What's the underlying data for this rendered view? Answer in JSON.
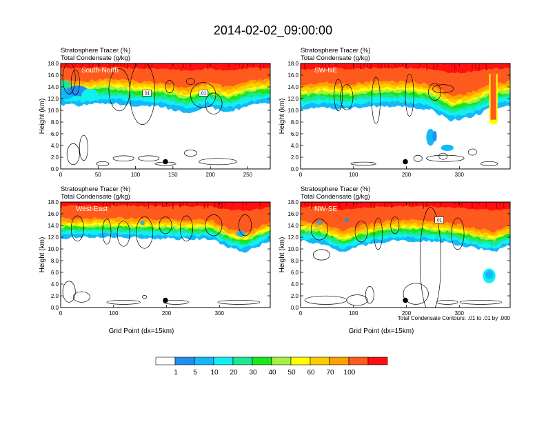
{
  "figure": {
    "title": "2014-02-02_09:00:00",
    "footnote": "Total Condensate Contours: .01 to .01 by .000"
  },
  "colorbar": {
    "colors": [
      "#ffffff",
      "#1f8ef0",
      "#13b8f8",
      "#10f0f0",
      "#1ee690",
      "#18e818",
      "#a6f046",
      "#ffff00",
      "#ffcc00",
      "#ffa000",
      "#ff5a1e",
      "#ff1010"
    ],
    "labels": [
      "1",
      "5",
      "10",
      "20",
      "30",
      "40",
      "50",
      "60",
      "70",
      "100"
    ]
  },
  "chart_data": [
    {
      "type": "heatmap",
      "region": "South-North",
      "var_labels": [
        "Stratosphere Tracer   (%)",
        "Total Condensate   (g/kg)"
      ],
      "xlabel": "",
      "ylabel": "Height (km)",
      "xlim": [
        0,
        280
      ],
      "ylim": [
        0,
        18
      ],
      "xticks": [
        "0",
        "50",
        "100",
        "150",
        "200",
        "250"
      ],
      "xtick_values": [
        0,
        50,
        100,
        150,
        200,
        250
      ],
      "yticks": [
        "0.0",
        "2.0",
        "4.0",
        "6.0",
        "8.0",
        "10.0",
        "12.0",
        "14.0",
        "16.0",
        "18.0"
      ],
      "contour_labels": [
        ".01",
        ".01"
      ],
      "marker": [
        140,
        1.0
      ]
    },
    {
      "type": "heatmap",
      "region": "SW-NE",
      "var_labels": [
        "Stratosphere Tracer   (%)",
        "Total Condensate   (g/kg)"
      ],
      "xlabel": "",
      "ylabel": "Height (km)",
      "xlim": [
        0,
        396
      ],
      "ylim": [
        0,
        18
      ],
      "xticks": [
        "0",
        "100",
        "200",
        "300"
      ],
      "xtick_values": [
        0,
        100,
        200,
        300
      ],
      "yticks": [
        "0.0",
        "2.0",
        "4.0",
        "6.0",
        "8.0",
        "10.0",
        "12.0",
        "14.0",
        "16.0",
        "18.0"
      ],
      "contour_labels": [],
      "marker": [
        198,
        1.0
      ]
    },
    {
      "type": "heatmap",
      "region": "West-East",
      "var_labels": [
        "Stratosphere Tracer   (%)",
        "Total Condensate   (g/kg)"
      ],
      "xlabel": "Grid Point (dx=15km)",
      "ylabel": "Height (km)",
      "xlim": [
        0,
        396
      ],
      "ylim": [
        0,
        18
      ],
      "xticks": [
        "0",
        "100",
        "200",
        "300"
      ],
      "xtick_values": [
        0,
        100,
        200,
        300
      ],
      "yticks": [
        "0.0",
        "2.0",
        "4.0",
        "6.0",
        "8.0",
        "10.0",
        "12.0",
        "14.0",
        "16.0",
        "18.0"
      ],
      "contour_labels": [],
      "marker": [
        198,
        1.0
      ]
    },
    {
      "type": "heatmap",
      "region": "NW-SE",
      "var_labels": [
        "Stratosphere Tracer   (%)",
        "Total Condensate   (g/kg)"
      ],
      "xlabel": "Grid Point (dx=15km)",
      "ylabel": "Height (km)",
      "xlim": [
        0,
        396
      ],
      "ylim": [
        0,
        18
      ],
      "xticks": [
        "0",
        "100",
        "200",
        "300"
      ],
      "xtick_values": [
        0,
        100,
        200,
        300
      ],
      "yticks": [
        "0.0",
        "2.0",
        "4.0",
        "6.0",
        "8.0",
        "10.0",
        "12.0",
        "14.0",
        "16.0",
        "18.0"
      ],
      "contour_labels": [
        ".01"
      ],
      "marker": [
        198,
        1.0
      ]
    }
  ]
}
